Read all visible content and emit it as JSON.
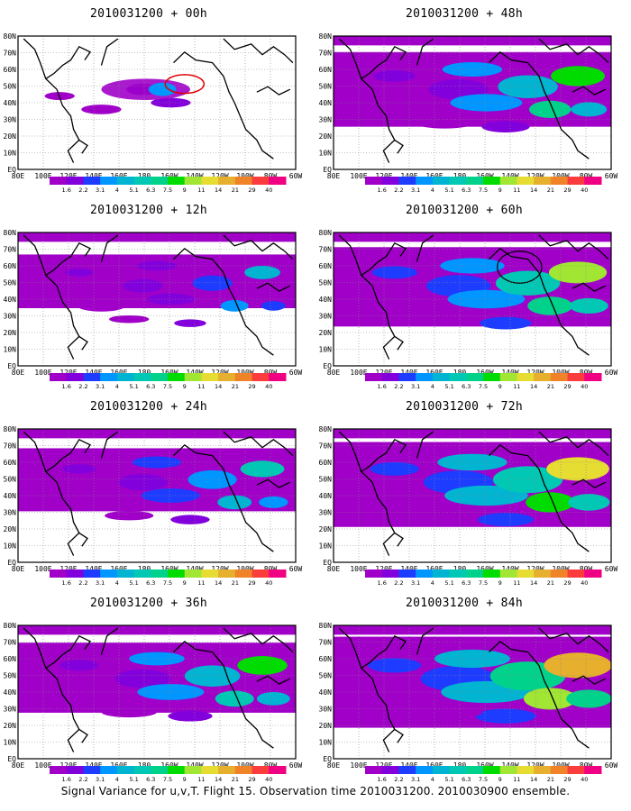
{
  "panels": [
    {
      "title": "2010031200 + 00h",
      "intensity": 0.0
    },
    {
      "title": "2010031200 + 12h",
      "intensity": 0.15
    },
    {
      "title": "2010031200 + 24h",
      "intensity": 0.35
    },
    {
      "title": "2010031200 + 36h",
      "intensity": 0.5
    },
    {
      "title": "2010031200 + 48h",
      "intensity": 0.6
    },
    {
      "title": "2010031200 + 60h",
      "intensity": 0.7
    },
    {
      "title": "2010031200 + 72h",
      "intensity": 0.82
    },
    {
      "title": "2010031200 + 84h",
      "intensity": 0.95
    }
  ],
  "lat_labels": [
    "80N",
    "70N",
    "60N",
    "50N",
    "40N",
    "30N",
    "20N",
    "10N",
    "EQ"
  ],
  "lon_labels": [
    "80E",
    "100E",
    "120E",
    "140E",
    "160E",
    "180",
    "160W",
    "140W",
    "120W",
    "100W",
    "80W",
    "60W"
  ],
  "colorbar": {
    "labels": [
      "1.6",
      "2.2",
      "3.1",
      "4",
      "5.1",
      "6.3",
      "7.5",
      "9",
      "11",
      "14",
      "21",
      "29",
      "40"
    ],
    "colors": [
      "#a000c8",
      "#8200dc",
      "#1e3cff",
      "#0096ff",
      "#00b4d2",
      "#00c8b4",
      "#00d28c",
      "#00dc00",
      "#a0e632",
      "#e6dc32",
      "#e6af2d",
      "#f08228",
      "#fa3c3c",
      "#f00082"
    ]
  },
  "caption": "Signal Variance for u,v,T. Flight 15. Observation time 2010031200. 2010030900 ensemble."
}
